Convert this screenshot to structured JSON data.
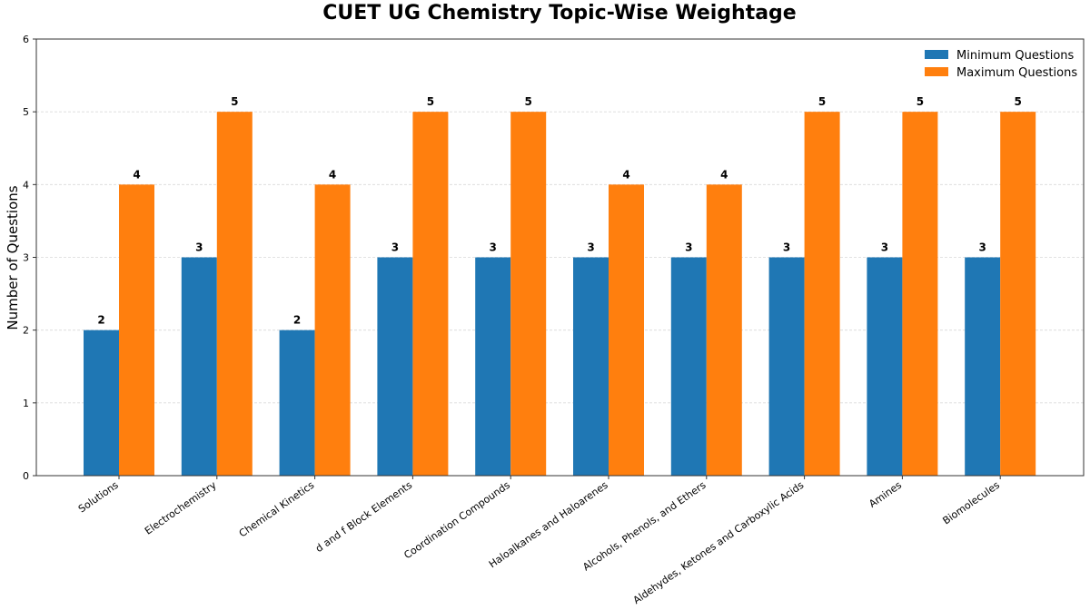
{
  "chart_data": {
    "type": "bar",
    "title": "CUET UG Chemistry Topic-Wise Weightage",
    "xlabel": "",
    "ylabel": "Number of Questions",
    "ylim": [
      0,
      6
    ],
    "yticks": [
      0,
      1,
      2,
      3,
      4,
      5,
      6
    ],
    "grid": "horizontal, light dashed",
    "legend_position": "top-right",
    "categories": [
      "Solutions",
      "Electrochemistry",
      "Chemical Kinetics",
      "d and f Block Elements",
      "Coordination Compounds",
      "Haloalkanes and Haloarenes",
      "Alcohols, Phenols, and Ethers",
      "Aldehydes, Ketones and Carboxylic Acids",
      "Amines",
      "Biomolecules"
    ],
    "series": [
      {
        "name": "Minimum Questions",
        "color": "#1f77b4",
        "values": [
          2,
          3,
          2,
          3,
          3,
          3,
          3,
          3,
          3,
          3
        ]
      },
      {
        "name": "Maximum Questions",
        "color": "#ff7f0e",
        "values": [
          4,
          5,
          4,
          5,
          5,
          4,
          4,
          5,
          5,
          5
        ]
      }
    ]
  }
}
